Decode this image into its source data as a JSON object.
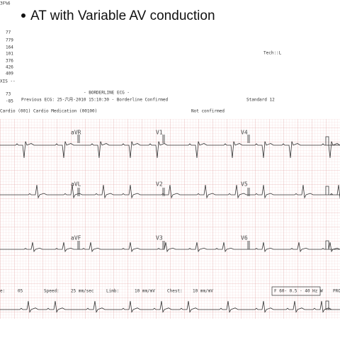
{
  "slide": {
    "title": "AT with Variable AV conduction"
  },
  "sidebar": {
    "code": "3F%6",
    "values": [
      "77",
      "779",
      "164",
      "101",
      "376",
      "426",
      "409",
      "XIS --",
      "73",
      "-85"
    ]
  },
  "header": {
    "tech": "Tech::L",
    "interpretation": "- BORDERLINE ECG -",
    "previous": "Previous ECG: 25-六月-2010 15:10:30 - Borderline Confirmed",
    "standard": "Standard 12",
    "location": "Cardio (001) Cardio Medication (00100)",
    "status": "Not confirmed"
  },
  "leads": [
    "aVR",
    "V1",
    "V4",
    "aVL",
    "V2",
    "V5",
    "aVF",
    "V3",
    "V6"
  ],
  "footer": [
    "e:",
    "05",
    "Speed:",
    "25 mm/sec",
    "Limb:",
    "10 mm/mV",
    "Chest:",
    "10 mm/mV",
    "F 60- 0.5 - 40 Hz W",
    "PRO"
  ]
}
